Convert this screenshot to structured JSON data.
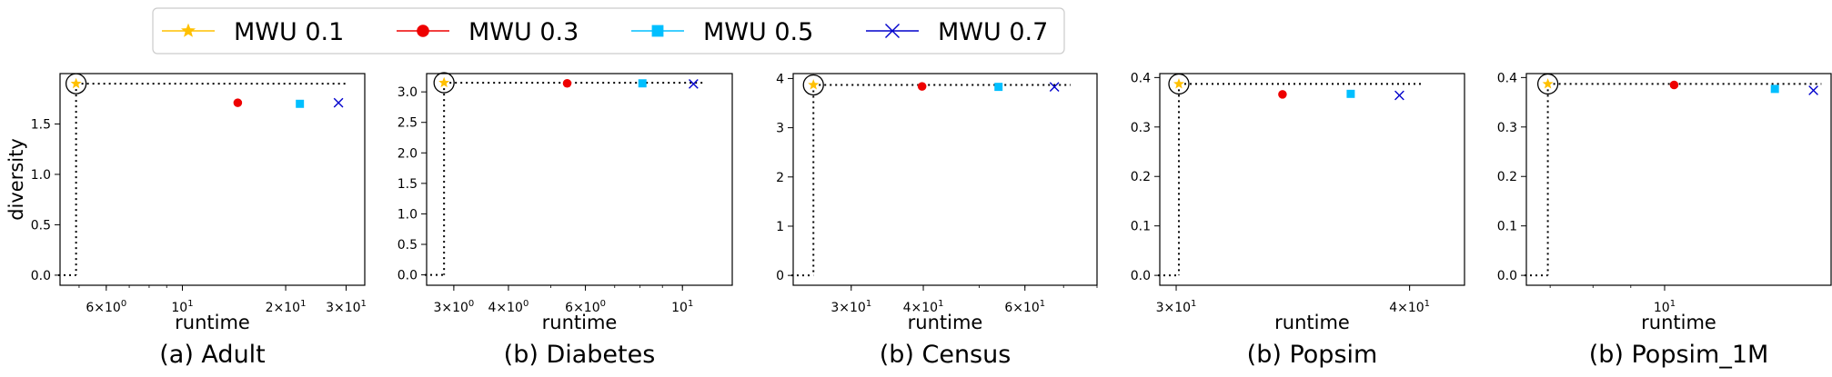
{
  "legend": {
    "placement": "top",
    "items": [
      {
        "label": "MWU 0.1",
        "color": "#FFC000",
        "marker": "star"
      },
      {
        "label": "MWU 0.3",
        "color": "#EE0000",
        "marker": "circle"
      },
      {
        "label": "MWU 0.5",
        "color": "#00BFFF",
        "marker": "square"
      },
      {
        "label": "MWU 0.7",
        "color": "#0000CC",
        "marker": "x"
      }
    ]
  },
  "chart_data": [
    {
      "type": "scatter",
      "caption": "(a) Adult",
      "xlabel": "runtime",
      "ylabel": "diversity",
      "xscale": "log",
      "xlim": [
        4.4,
        34
      ],
      "ylim": [
        -0.1,
        2.0
      ],
      "xticks": [
        {
          "v": 6,
          "b": "6",
          "e": "0"
        },
        {
          "v": 10,
          "b": "10",
          "e": "1"
        },
        {
          "v": 20,
          "b": "2",
          "e": "1"
        },
        {
          "v": 30,
          "b": "3",
          "e": "1"
        }
      ],
      "yticks": [
        {
          "v": 0.0,
          "t": "0.0"
        },
        {
          "v": 0.5,
          "t": "0.5"
        },
        {
          "v": 1.0,
          "t": "1.0"
        },
        {
          "v": 1.5,
          "t": "1.5"
        }
      ],
      "points": [
        {
          "series": "MWU 0.1",
          "x": 4.9,
          "y": 1.9
        },
        {
          "series": "MWU 0.3",
          "x": 14.5,
          "y": 1.71
        },
        {
          "series": "MWU 0.5",
          "x": 22.0,
          "y": 1.7
        },
        {
          "series": "MWU 0.7",
          "x": 28.5,
          "y": 1.71
        }
      ],
      "best": {
        "x": 4.9,
        "y": 1.9
      },
      "guide_x_end": 30.5
    },
    {
      "type": "scatter",
      "caption": "(b) Diabetes",
      "xlabel": "runtime",
      "ylabel": "",
      "xscale": "log",
      "xlim": [
        2.6,
        13.0
      ],
      "ylim": [
        -0.17,
        3.3
      ],
      "xticks": [
        {
          "v": 3,
          "b": "3",
          "e": "0"
        },
        {
          "v": 4,
          "b": "4",
          "e": "0"
        },
        {
          "v": 6,
          "b": "6",
          "e": "0"
        },
        {
          "v": 10,
          "b": "10",
          "e": "1"
        }
      ],
      "yticks": [
        {
          "v": 0.0,
          "t": "0.0"
        },
        {
          "v": 0.5,
          "t": "0.5"
        },
        {
          "v": 1.0,
          "t": "1.0"
        },
        {
          "v": 1.5,
          "t": "1.5"
        },
        {
          "v": 2.0,
          "t": "2.0"
        },
        {
          "v": 2.5,
          "t": "2.5"
        },
        {
          "v": 3.0,
          "t": "3.0"
        }
      ],
      "points": [
        {
          "series": "MWU 0.1",
          "x": 2.85,
          "y": 3.15
        },
        {
          "series": "MWU 0.3",
          "x": 5.45,
          "y": 3.14
        },
        {
          "series": "MWU 0.5",
          "x": 8.1,
          "y": 3.14
        },
        {
          "series": "MWU 0.7",
          "x": 10.6,
          "y": 3.13
        }
      ],
      "best": {
        "x": 2.85,
        "y": 3.15
      },
      "guide_x_end": 11.2
    },
    {
      "type": "scatter",
      "caption": "(b) Census",
      "xlabel": "runtime",
      "ylabel": "",
      "xscale": "log",
      "xlim": [
        23.8,
        80
      ],
      "ylim": [
        -0.2,
        4.1
      ],
      "xticks": [
        {
          "v": 30,
          "b": "3",
          "e": "1"
        },
        {
          "v": 40,
          "b": "4",
          "e": "1"
        },
        {
          "v": 60,
          "b": "6",
          "e": "1"
        }
      ],
      "yticks": [
        {
          "v": 0,
          "t": "0"
        },
        {
          "v": 1,
          "t": "1"
        },
        {
          "v": 2,
          "t": "2"
        },
        {
          "v": 3,
          "t": "3"
        },
        {
          "v": 4,
          "t": "4"
        }
      ],
      "points": [
        {
          "series": "MWU 0.1",
          "x": 25.8,
          "y": 3.87
        },
        {
          "series": "MWU 0.3",
          "x": 39.8,
          "y": 3.84
        },
        {
          "series": "MWU 0.5",
          "x": 54.0,
          "y": 3.83
        },
        {
          "series": "MWU 0.7",
          "x": 67.5,
          "y": 3.83
        }
      ],
      "best": {
        "x": 25.8,
        "y": 3.87
      },
      "guide_x_end": 72
    },
    {
      "type": "scatter",
      "caption": "(b) Popsim",
      "xlabel": "runtime",
      "ylabel": "",
      "xscale": "log",
      "xlim": [
        29.4,
        42.8
      ],
      "ylim": [
        -0.02,
        0.408
      ],
      "xticks": [
        {
          "v": 30,
          "b": "3",
          "e": "1"
        },
        {
          "v": 40,
          "b": "4",
          "e": "1"
        }
      ],
      "yticks": [
        {
          "v": 0.0,
          "t": "0.0"
        },
        {
          "v": 0.1,
          "t": "0.1"
        },
        {
          "v": 0.2,
          "t": "0.2"
        },
        {
          "v": 0.3,
          "t": "0.3"
        },
        {
          "v": 0.4,
          "t": "0.4"
        }
      ],
      "points": [
        {
          "series": "MWU 0.1",
          "x": 30.1,
          "y": 0.387
        },
        {
          "series": "MWU 0.3",
          "x": 34.2,
          "y": 0.366
        },
        {
          "series": "MWU 0.5",
          "x": 37.2,
          "y": 0.367
        },
        {
          "series": "MWU 0.7",
          "x": 39.5,
          "y": 0.364
        }
      ],
      "best": {
        "x": 30.1,
        "y": 0.387
      },
      "guide_x_end": 40.6
    },
    {
      "type": "scatter",
      "caption": "(b) Popsim_1M",
      "xlabel": "runtime",
      "ylabel": "",
      "xscale": "log",
      "xlim": [
        6.5,
        16.8
      ],
      "ylim": [
        -0.02,
        0.408
      ],
      "xticks": [
        {
          "v": 10,
          "b": "10",
          "e": "1"
        }
      ],
      "yticks": [
        {
          "v": 0.0,
          "t": "0.0"
        },
        {
          "v": 0.1,
          "t": "0.1"
        },
        {
          "v": 0.2,
          "t": "0.2"
        },
        {
          "v": 0.3,
          "t": "0.3"
        },
        {
          "v": 0.4,
          "t": "0.4"
        }
      ],
      "points": [
        {
          "series": "MWU 0.1",
          "x": 6.95,
          "y": 0.387
        },
        {
          "series": "MWU 0.3",
          "x": 10.3,
          "y": 0.385
        },
        {
          "series": "MWU 0.5",
          "x": 14.1,
          "y": 0.377
        },
        {
          "series": "MWU 0.7",
          "x": 15.9,
          "y": 0.374
        }
      ],
      "best": {
        "x": 6.95,
        "y": 0.387
      },
      "guide_x_end": 16.3
    }
  ]
}
